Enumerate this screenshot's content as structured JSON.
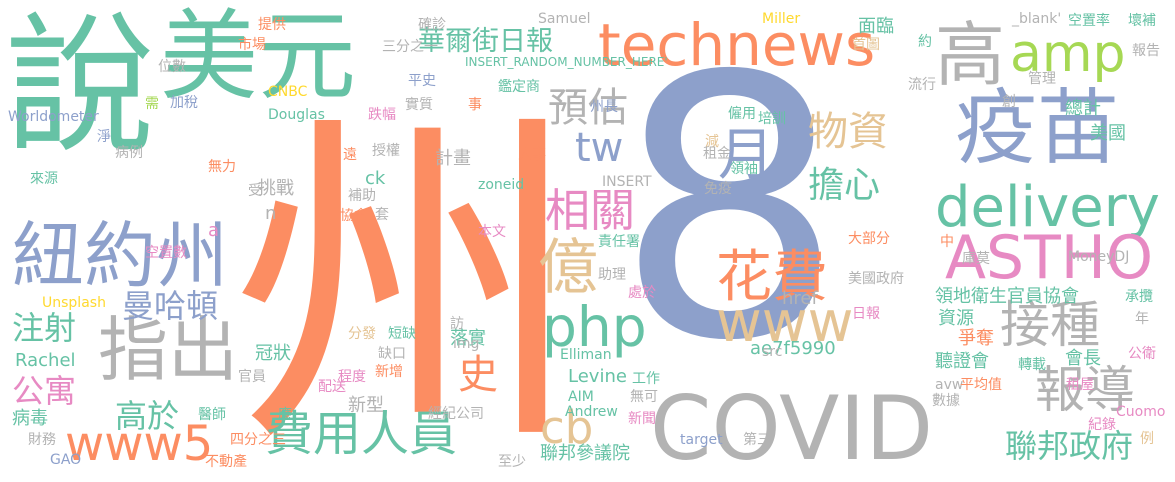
{
  "palette": {
    "green": "#66c2a5",
    "orange": "#fc8d62",
    "blue": "#8da0cb",
    "pink": "#e78ac3",
    "lime": "#a6d854",
    "yellow": "#ffd92f",
    "tan": "#e5c494",
    "gray": "#b3b3b3"
  },
  "words": [
    {
      "text": "說",
      "color": "green"
    },
    {
      "text": "美元",
      "color": "green"
    },
    {
      "text": "州",
      "color": "orange"
    },
    {
      "text": "8",
      "color": "blue"
    },
    {
      "text": "technews",
      "color": "orange"
    },
    {
      "text": "疫苗",
      "color": "blue"
    },
    {
      "text": "COVID",
      "color": "gray"
    },
    {
      "text": "紐約州",
      "color": "blue"
    },
    {
      "text": "高",
      "color": "gray"
    },
    {
      "text": "amp",
      "color": "lime"
    },
    {
      "text": "delivery",
      "color": "green"
    },
    {
      "text": "ASTHO",
      "color": "pink"
    },
    {
      "text": "月",
      "color": "blue"
    },
    {
      "text": "指出",
      "color": "gray"
    },
    {
      "text": "億",
      "color": "tan"
    },
    {
      "text": "php",
      "color": "green"
    },
    {
      "text": "花費",
      "color": "orange"
    },
    {
      "text": "www",
      "color": "tan"
    },
    {
      "text": "接種",
      "color": "gray"
    },
    {
      "text": "報導",
      "color": "gray"
    },
    {
      "text": "費用人員",
      "color": "green"
    },
    {
      "text": "www5",
      "color": "orange"
    },
    {
      "text": "相關",
      "color": "pink"
    },
    {
      "text": "預估",
      "color": "gray"
    },
    {
      "text": "tw",
      "color": "blue"
    },
    {
      "text": "物資",
      "color": "tan"
    },
    {
      "text": "擔心",
      "color": "green"
    },
    {
      "text": "華爾街日報",
      "color": "green"
    },
    {
      "text": "曼哈頓",
      "color": "blue"
    },
    {
      "text": "注射",
      "color": "green"
    },
    {
      "text": "cb",
      "color": "tan"
    },
    {
      "text": "聯邦政府",
      "color": "green"
    },
    {
      "text": "高於",
      "color": "green"
    },
    {
      "text": "公寓",
      "color": "pink"
    },
    {
      "text": "史",
      "color": "orange"
    },
    {
      "text": "領地衛生官員協會",
      "color": "green"
    },
    {
      "text": "ae7f5990",
      "color": "green"
    },
    {
      "text": "href",
      "color": "gray"
    },
    {
      "text": "Levine",
      "color": "green"
    },
    {
      "text": "Rachel",
      "color": "green"
    },
    {
      "text": "聯邦參議院",
      "color": "green"
    },
    {
      "text": "落實",
      "color": "green"
    },
    {
      "text": "聽證會",
      "color": "green"
    },
    {
      "text": "總計",
      "color": "green"
    },
    {
      "text": "面臨",
      "color": "green"
    },
    {
      "text": "挑戰",
      "color": "gray"
    },
    {
      "text": "冠狀",
      "color": "green"
    },
    {
      "text": "病毒",
      "color": "green"
    },
    {
      "text": "美國",
      "color": "green"
    },
    {
      "text": "資源",
      "color": "green"
    },
    {
      "text": "爭奪",
      "color": "orange"
    },
    {
      "text": "會長",
      "color": "green"
    },
    {
      "text": "新型",
      "color": "gray"
    },
    {
      "text": "計畫",
      "color": "gray"
    },
    {
      "text": "ck",
      "color": "green"
    },
    {
      "text": "a",
      "color": "pink"
    },
    {
      "text": "n",
      "color": "gray"
    },
    {
      "text": "Worldometer",
      "color": "blue"
    },
    {
      "text": "加稅",
      "color": "blue"
    },
    {
      "text": "需",
      "color": "lime"
    },
    {
      "text": "位數",
      "color": "gray"
    },
    {
      "text": "市場",
      "color": "orange"
    },
    {
      "text": "提供",
      "color": "orange"
    },
    {
      "text": "CNBC",
      "color": "yellow"
    },
    {
      "text": "Douglas",
      "color": "green"
    },
    {
      "text": "跌幅",
      "color": "pink"
    },
    {
      "text": "實質",
      "color": "gray"
    },
    {
      "text": "事",
      "color": "orange"
    },
    {
      "text": "平史",
      "color": "blue"
    },
    {
      "text": "確診",
      "color": "gray"
    },
    {
      "text": "三分之一",
      "color": "gray"
    },
    {
      "text": "Samuel",
      "color": "gray"
    },
    {
      "text": "鑑定商",
      "color": "green"
    },
    {
      "text": "INSERT_RANDOM_NUMBER_HERE'",
      "color": "green"
    },
    {
      "text": "Miller",
      "color": "yellow"
    },
    {
      "text": "首圖",
      "color": "tan"
    },
    {
      "text": "約",
      "color": "green"
    },
    {
      "text": "流行",
      "color": "gray"
    },
    {
      "text": "_blank'",
      "color": "gray"
    },
    {
      "text": "空置率",
      "color": "green"
    },
    {
      "text": "壞補",
      "color": "green"
    },
    {
      "text": "報告",
      "color": "gray"
    },
    {
      "text": "管理",
      "color": "gray"
    },
    {
      "text": "創",
      "color": "gray"
    },
    {
      "text": "淨",
      "color": "blue"
    },
    {
      "text": "病例",
      "color": "gray"
    },
    {
      "text": "來源",
      "color": "green"
    },
    {
      "text": "無力",
      "color": "orange"
    },
    {
      "text": "遠",
      "color": "orange"
    },
    {
      "text": "授權",
      "color": "gray"
    },
    {
      "text": "人事",
      "color": "orange"
    },
    {
      "text": "州長",
      "color": "blue"
    },
    {
      "text": "僱用",
      "color": "green"
    },
    {
      "text": "培訓",
      "color": "green"
    },
    {
      "text": "減",
      "color": "tan"
    },
    {
      "text": "租金",
      "color": "gray"
    },
    {
      "text": "領袖",
      "color": "green"
    },
    {
      "text": "INSERT",
      "color": "gray"
    },
    {
      "text": "zoneid",
      "color": "green"
    },
    {
      "text": "免疫",
      "color": "gray"
    },
    {
      "text": "受",
      "color": "gray"
    },
    {
      "text": "補助",
      "color": "gray"
    },
    {
      "text": "協會",
      "color": "orange"
    },
    {
      "text": "套",
      "color": "gray"
    },
    {
      "text": "空置數",
      "color": "pink"
    },
    {
      "text": "Unsplash",
      "color": "yellow"
    },
    {
      "text": "本文",
      "color": "pink"
    },
    {
      "text": "責任署",
      "color": "green"
    },
    {
      "text": "大部分",
      "color": "orange"
    },
    {
      "text": "中",
      "color": "orange"
    },
    {
      "text": "MoneyDJ",
      "color": "gray"
    },
    {
      "text": "庫莫",
      "color": "gray"
    },
    {
      "text": "美國政府",
      "color": "gray"
    },
    {
      "text": "助理",
      "color": "gray"
    },
    {
      "text": "處於",
      "color": "pink"
    },
    {
      "text": "承攬",
      "color": "green"
    },
    {
      "text": "年",
      "color": "gray"
    },
    {
      "text": "日報",
      "color": "pink"
    },
    {
      "text": "訪",
      "color": "gray"
    },
    {
      "text": "img",
      "color": "gray"
    },
    {
      "text": "分發",
      "color": "tan"
    },
    {
      "text": "短缺",
      "color": "green"
    },
    {
      "text": "缺口",
      "color": "gray"
    },
    {
      "text": "程度",
      "color": "pink"
    },
    {
      "text": "官員",
      "color": "gray"
    },
    {
      "text": "新增",
      "color": "orange"
    },
    {
      "text": "配送",
      "color": "pink"
    },
    {
      "text": "Elliman",
      "color": "green"
    },
    {
      "text": "src",
      "color": "gray"
    },
    {
      "text": "公衛",
      "color": "pink"
    },
    {
      "text": "轉載",
      "color": "green"
    },
    {
      "text": "租屋",
      "color": "pink"
    },
    {
      "text": "avw",
      "color": "gray"
    },
    {
      "text": "平均值",
      "color": "orange"
    },
    {
      "text": "數據",
      "color": "gray"
    },
    {
      "text": "工作",
      "color": "green"
    },
    {
      "text": "AIM",
      "color": "green"
    },
    {
      "text": "無可",
      "color": "gray"
    },
    {
      "text": "Andrew",
      "color": "green"
    },
    {
      "text": "經紀公司",
      "color": "gray"
    },
    {
      "text": "新聞",
      "color": "pink"
    },
    {
      "text": "醫師",
      "color": "green"
    },
    {
      "text": "應",
      "color": "green"
    },
    {
      "text": "財務",
      "color": "gray"
    },
    {
      "text": "四分之三",
      "color": "orange"
    },
    {
      "text": "不動產",
      "color": "orange"
    },
    {
      "text": "至少",
      "color": "gray"
    },
    {
      "text": "GAO",
      "color": "blue"
    },
    {
      "text": "target",
      "color": "blue"
    },
    {
      "text": "第三",
      "color": "gray"
    },
    {
      "text": "紀錄",
      "color": "pink"
    },
    {
      "text": "Cuomo",
      "color": "pink"
    },
    {
      "text": "例",
      "color": "tan"
    }
  ]
}
